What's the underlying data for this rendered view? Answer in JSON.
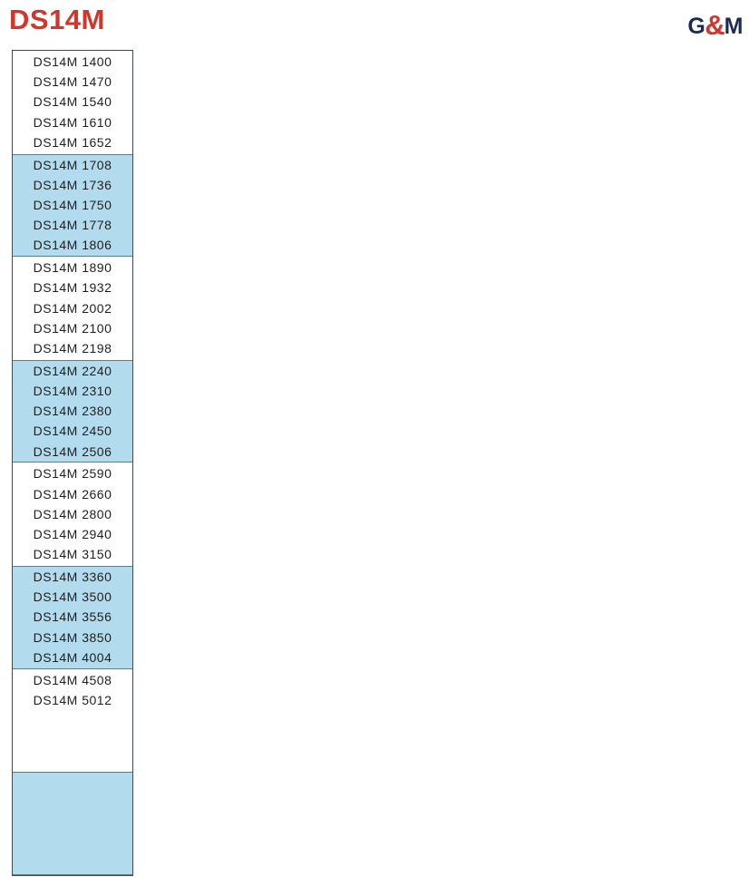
{
  "header": {
    "title": "DS14M",
    "logo": {
      "g": "G",
      "amp": "&",
      "m": "M"
    }
  },
  "colors": {
    "title_red": "#d2352b",
    "logo_navy": "#1e2a54",
    "logo_ampersand_red": "#d2352b",
    "highlight_blue": "#b2dbee",
    "list_border": "#3f4a52",
    "text": "#1f1f1f"
  },
  "model_list": {
    "groups": [
      {
        "highlight": false,
        "items": [
          "DS14M 1400",
          "DS14M 1470",
          "DS14M 1540",
          "DS14M 1610",
          "DS14M 1652"
        ]
      },
      {
        "highlight": true,
        "items": [
          "DS14M 1708",
          "DS14M 1736",
          "DS14M 1750",
          "DS14M 1778",
          "DS14M 1806"
        ]
      },
      {
        "highlight": false,
        "items": [
          "DS14M 1890",
          "DS14M 1932",
          "DS14M 2002",
          "DS14M 2100",
          "DS14M 2198"
        ]
      },
      {
        "highlight": true,
        "items": [
          "DS14M 2240",
          "DS14M 2310",
          "DS14M 2380",
          "DS14M 2450",
          "DS14M 2506"
        ]
      },
      {
        "highlight": false,
        "items": [
          "DS14M 2590",
          "DS14M 2660",
          "DS14M 2800",
          "DS14M 2940",
          "DS14M 3150"
        ]
      },
      {
        "highlight": true,
        "items": [
          "DS14M 3360",
          "DS14M 3500",
          "DS14M 3556",
          "DS14M 3850",
          "DS14M 4004"
        ]
      },
      {
        "highlight": false,
        "items": [
          "DS14M 4508",
          "DS14M 5012"
        ]
      },
      {
        "highlight": true,
        "items": []
      }
    ]
  }
}
